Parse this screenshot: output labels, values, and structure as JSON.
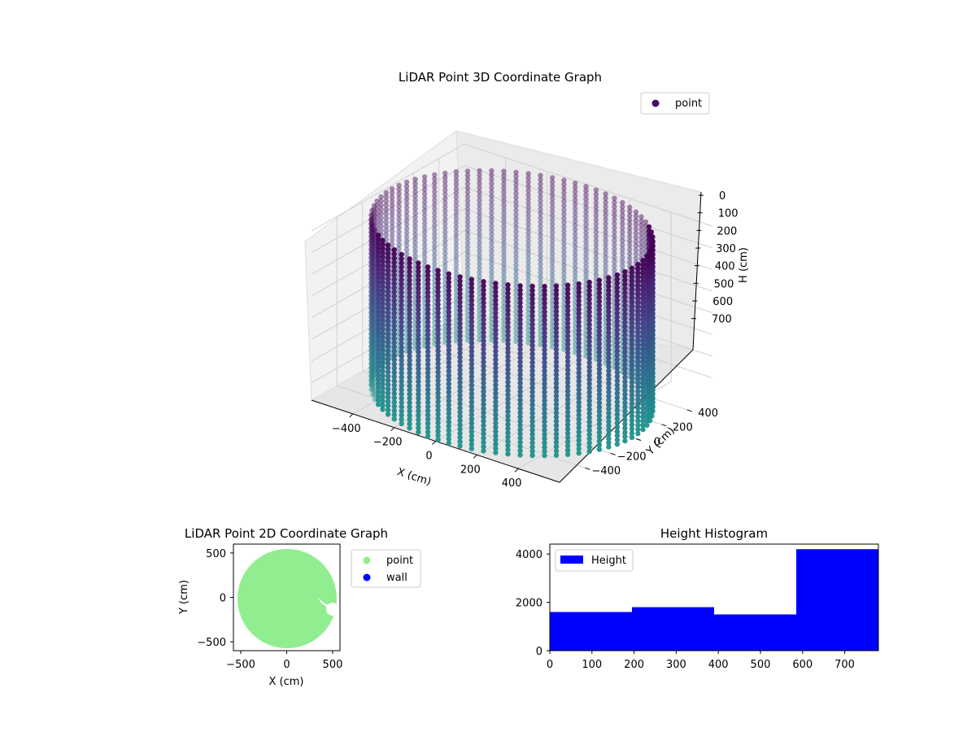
{
  "chart_data": [
    {
      "type": "scatter",
      "projection": "3d",
      "title": "LiDAR Point 3D Coordinate Graph",
      "xlabel": "X (cm)",
      "ylabel": "Y (cm)",
      "zlabel": "H (cm)",
      "x_ticks": [
        -400,
        -200,
        0,
        200,
        400
      ],
      "y_ticks": [
        -400,
        -200,
        0,
        200,
        400
      ],
      "z_ticks": [
        0,
        100,
        200,
        300,
        400,
        500,
        600,
        700
      ],
      "xlim": [
        -600,
        600
      ],
      "ylim": [
        -600,
        600
      ],
      "zlim": [
        780,
        0
      ],
      "z_inverted": true,
      "colormap": "viridis",
      "marker_color_legend": "#440f6e",
      "legend": [
        "point"
      ],
      "legend_position": "top-right",
      "grid": true,
      "description_of_points": {
        "shape": "cylindrical wall of points",
        "radius_cm": 580,
        "height_range_cm": [
          0,
          780
        ],
        "gap_angle_deg": 0
      }
    },
    {
      "type": "scatter",
      "title": "LiDAR Point 2D Coordinate Graph",
      "xlabel": "X (cm)",
      "ylabel": "Y (cm)",
      "x_ticks": [
        -500,
        0,
        500
      ],
      "y_ticks": [
        -500,
        0,
        500
      ],
      "xlim": [
        -580,
        580
      ],
      "ylim": [
        -600,
        600
      ],
      "series": [
        {
          "name": "point",
          "color": "#90ee90",
          "shape": "filled disk",
          "center": [
            0,
            0
          ],
          "radius": 580
        },
        {
          "name": "wall",
          "color": "#0000ff",
          "values": []
        }
      ],
      "legend": [
        "point",
        "wall"
      ],
      "legend_position": "outside-right",
      "grid": false
    },
    {
      "type": "bar",
      "subtype": "histogram",
      "title": "Height Histogram",
      "legend": [
        "Height"
      ],
      "legend_position": "top-left",
      "bar_color": "#0000ff",
      "bins": [
        {
          "x0": 0,
          "x1": 195,
          "count": 1600
        },
        {
          "x0": 195,
          "x1": 390,
          "count": 1800
        },
        {
          "x0": 390,
          "x1": 585,
          "count": 1500
        },
        {
          "x0": 585,
          "x1": 780,
          "count": 4200
        }
      ],
      "x_ticks": [
        0,
        100,
        200,
        300,
        400,
        500,
        600,
        700
      ],
      "y_ticks": [
        0,
        2000,
        4000
      ],
      "xlim": [
        0,
        780
      ],
      "ylim": [
        0,
        4410
      ],
      "grid": false
    }
  ]
}
